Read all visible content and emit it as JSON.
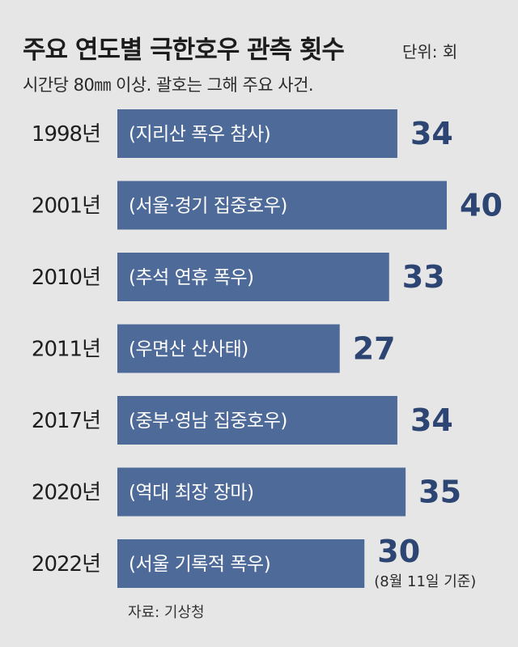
{
  "title": "주요 연도별 극한호우 관측 횟수",
  "unit_label": "단위: 회",
  "subtitle": "시간당 80㎜ 이상. 괄호는 그해 주요 사건.",
  "source": "자료: 기상청",
  "colors": {
    "background": "#e6e6e6",
    "bar": "#4e6a99",
    "value": "#2d4572",
    "bar_text": "#ffffff"
  },
  "chart_data": {
    "type": "bar",
    "orientation": "horizontal",
    "categories": [
      "1998년",
      "2001년",
      "2010년",
      "2011년",
      "2017년",
      "2020년",
      "2022년"
    ],
    "events": [
      "(지리산 폭우 참사)",
      "(서울·경기 집중호우)",
      "(추석 연휴 폭우)",
      "(우면산 산사태)",
      "(중부·영남 집중호우)",
      "(역대 최장 장마)",
      "(서울 기록적 폭우)"
    ],
    "values": [
      34,
      40,
      33,
      27,
      34,
      35,
      30
    ],
    "value_labels": [
      "34",
      "40",
      "33",
      "27",
      "34",
      "35",
      "30"
    ],
    "annotations": [
      {
        "category": "2022년",
        "text": "(8월 11일 기준)"
      }
    ],
    "xlim": [
      0,
      40
    ],
    "grid": false,
    "legend": "none"
  }
}
